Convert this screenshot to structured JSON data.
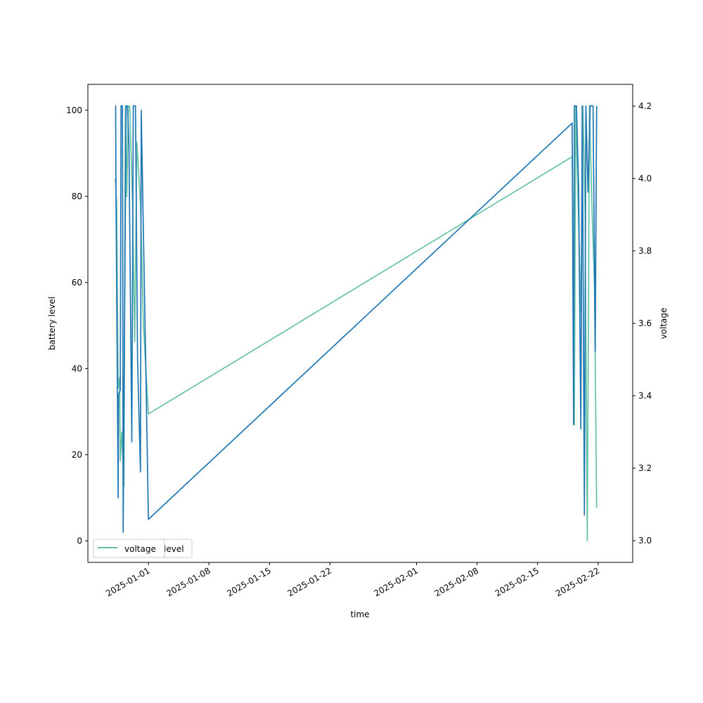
{
  "chart_data": {
    "type": "line",
    "xlabel": "time",
    "ylabel_left": "battery level",
    "ylabel_right": "voltage",
    "x_axis_type": "date",
    "xlim": [
      "2024-12-25",
      "2025-02-26"
    ],
    "ylim_left": [
      -5,
      106
    ],
    "ylim_right": [
      2.94,
      4.26
    ],
    "x_ticks": [
      "2025-01-01",
      "2025-01-08",
      "2025-01-15",
      "2025-01-22",
      "2025-02-01",
      "2025-02-08",
      "2025-02-15",
      "2025-02-22"
    ],
    "y_ticks_left": [
      0,
      20,
      40,
      60,
      80,
      100
    ],
    "y_ticks_right": [
      3.0,
      3.2,
      3.4,
      3.6,
      3.8,
      4.0,
      4.2
    ],
    "grid": false,
    "legend_placement": "lower-left",
    "legend_entries": [
      "voltage",
      "level"
    ],
    "colors": {
      "level": "#1f77b4",
      "voltage": "#66c2a5"
    },
    "series": [
      {
        "axis": "left",
        "points": [
          [
            "2024-12-28 04:00",
            101
          ],
          [
            "2024-12-28 05:00",
            101
          ],
          [
            "2024-12-28 06:00",
            80
          ],
          [
            "2024-12-28 12:00",
            10
          ],
          [
            "2024-12-28 13:00",
            34
          ],
          [
            "2024-12-28 18:00",
            35
          ],
          [
            "2024-12-28 20:00",
            101
          ],
          [
            "2024-12-29 00:00",
            101
          ],
          [
            "2024-12-29 02:00",
            2
          ],
          [
            "2024-12-29 10:00",
            101
          ],
          [
            "2024-12-29 14:00",
            101
          ],
          [
            "2024-12-29 18:00",
            92
          ],
          [
            "2024-12-30 02:00",
            23
          ],
          [
            "2024-12-30 06:00",
            101
          ],
          [
            "2024-12-30 12:00",
            101
          ],
          [
            "2024-12-30 18:00",
            42
          ],
          [
            "2024-12-31 02:00",
            16
          ],
          [
            "2024-12-31 04:00",
            100
          ],
          [
            "2024-12-31 16:00",
            44
          ],
          [
            "2025-01-01 00:00",
            5
          ],
          [
            "2025-02-19 00:00",
            97
          ],
          [
            "2025-02-19 04:00",
            27
          ],
          [
            "2025-02-19 06:00",
            101
          ],
          [
            "2025-02-19 12:00",
            101
          ],
          [
            "2025-02-19 18:00",
            82
          ],
          [
            "2025-02-20 00:00",
            26
          ],
          [
            "2025-02-20 04:00",
            101
          ],
          [
            "2025-02-20 10:00",
            6
          ],
          [
            "2025-02-20 14:00",
            101
          ],
          [
            "2025-02-20 20:00",
            81
          ],
          [
            "2025-02-21 02:00",
            101
          ],
          [
            "2025-02-21 10:00",
            101
          ],
          [
            "2025-02-21 16:00",
            44
          ],
          [
            "2025-02-21 20:00",
            101
          ]
        ]
      },
      {
        "axis": "right",
        "points": [
          [
            "2024-12-28 04:00",
            4.0
          ],
          [
            "2024-12-28 08:00",
            3.93
          ],
          [
            "2024-12-28 12:00",
            3.42
          ],
          [
            "2024-12-28 16:00",
            3.45
          ],
          [
            "2024-12-28 18:00",
            3.22
          ],
          [
            "2024-12-28 22:00",
            3.3
          ],
          [
            "2024-12-29 04:00",
            3.15
          ],
          [
            "2024-12-29 08:00",
            4.2
          ],
          [
            "2024-12-29 12:00",
            3.95
          ],
          [
            "2024-12-29 16:00",
            4.2
          ],
          [
            "2024-12-29 20:00",
            4.2
          ],
          [
            "2024-12-30 04:00",
            3.93
          ],
          [
            "2024-12-30 10:00",
            3.55
          ],
          [
            "2024-12-30 16:00",
            4.1
          ],
          [
            "2024-12-31 02:00",
            3.93
          ],
          [
            "2024-12-31 10:00",
            3.6
          ],
          [
            "2025-01-01 00:00",
            3.35
          ],
          [
            "2025-02-19 00:00",
            4.06
          ],
          [
            "2025-02-19 06:00",
            3.32
          ],
          [
            "2025-02-19 10:00",
            4.2
          ],
          [
            "2025-02-19 16:00",
            3.95
          ],
          [
            "2025-02-20 00:00",
            3.63
          ],
          [
            "2025-02-20 06:00",
            4.2
          ],
          [
            "2025-02-20 12:00",
            3.9
          ],
          [
            "2025-02-20 18:00",
            3.0
          ],
          [
            "2025-02-21 00:00",
            4.2
          ],
          [
            "2025-02-21 06:00",
            3.95
          ],
          [
            "2025-02-21 14:00",
            3.7
          ],
          [
            "2025-02-21 20:00",
            3.09
          ]
        ]
      }
    ]
  }
}
